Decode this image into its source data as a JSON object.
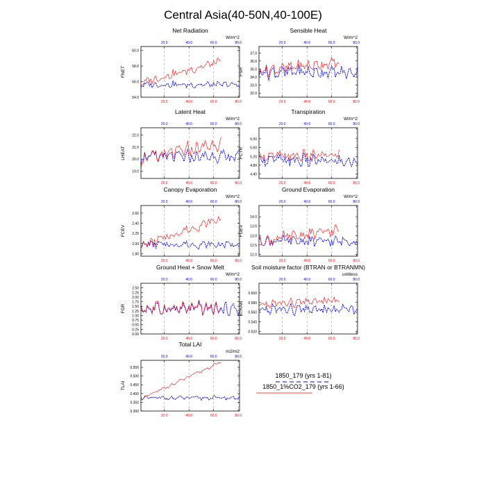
{
  "page": {
    "title": "Central Asia(40-50N,40-100E)"
  },
  "colors": {
    "control": "#0000ff",
    "experiment": "#ff0000",
    "axis": "#000000",
    "grid": "#999999"
  },
  "legend": {
    "entries": [
      {
        "label": "1850_179 (yrs 1-81)",
        "color": "#0000ff",
        "style": "dashed"
      },
      {
        "label": "1850_1%CO2_179 (yrs 1-66)",
        "color": "#ff0000",
        "style": "solid"
      }
    ]
  },
  "chart_data": [
    {
      "type": "line",
      "title": "Net Radiation",
      "ylabel": "FNET",
      "units": "W/m^2",
      "xlim": [
        1,
        81
      ],
      "xticks": [
        20,
        40,
        60,
        80
      ],
      "xtick_labels_top": [
        "20.0",
        "40.0",
        "60.0",
        "80.0"
      ],
      "xtick_labels_bottom": [
        "20.0",
        "40.0",
        "60.0",
        "80.0"
      ],
      "ylim": [
        54.0,
        60.5
      ],
      "yticks": [
        54.0,
        56.0,
        58.0,
        60.0
      ],
      "ytick_labels": [
        "54.0",
        "56.0",
        "58.0",
        "60.0"
      ],
      "series": [
        {
          "key": "control",
          "n": 81,
          "style": "dashed",
          "base": 55.6,
          "amp": 0.55,
          "trend": 0.0,
          "wiggle": 3
        },
        {
          "key": "experiment",
          "n": 66,
          "style": "solid",
          "base": 55.8,
          "amp": 0.7,
          "trend": 2.8,
          "wiggle": 3
        }
      ]
    },
    {
      "type": "line",
      "title": "Sensible Heat",
      "ylabel": "FSH",
      "units": "W/m^2",
      "xlim": [
        1,
        81
      ],
      "xticks": [
        20,
        40,
        60,
        80
      ],
      "xtick_labels_top": [
        "20.0",
        "40.0",
        "60.0",
        "80.0"
      ],
      "xtick_labels_bottom": [
        "20.0",
        "40.0",
        "60.0",
        "80.0"
      ],
      "ylim": [
        31.5,
        37.8
      ],
      "yticks": [
        32.0,
        33.0,
        34.0,
        35.0,
        36.0,
        37.0
      ],
      "ytick_labels": [
        "32.0",
        "33.0",
        "34.0",
        "35.0",
        "36.0",
        "37.0"
      ],
      "series": [
        {
          "key": "control",
          "n": 81,
          "style": "dashed",
          "base": 34.6,
          "amp": 1.1,
          "trend": 0.0,
          "wiggle": 4
        },
        {
          "key": "experiment",
          "n": 66,
          "style": "solid",
          "base": 34.8,
          "amp": 1.0,
          "trend": 1.0,
          "wiggle": 4
        }
      ]
    },
    {
      "type": "line",
      "title": "Latent Heat",
      "ylabel": "LHEAT",
      "units": "W/m^2",
      "xlim": [
        1,
        81
      ],
      "xticks": [
        20,
        40,
        60,
        80
      ],
      "xtick_labels_top": [
        "20.0",
        "40.0",
        "60.0",
        "80.0"
      ],
      "xtick_labels_bottom": [
        "20.0",
        "40.0",
        "60.0",
        "80.0"
      ],
      "ylim": [
        18.4,
        22.6
      ],
      "yticks": [
        19.0,
        20.0,
        21.0,
        22.0
      ],
      "ytick_labels": [
        "19.0",
        "20.0",
        "21.0",
        "22.0"
      ],
      "series": [
        {
          "key": "control",
          "n": 81,
          "style": "dashed",
          "base": 20.2,
          "amp": 0.7,
          "trend": 0.0,
          "wiggle": 5
        },
        {
          "key": "experiment",
          "n": 66,
          "style": "solid",
          "base": 20.0,
          "amp": 0.8,
          "trend": 1.3,
          "wiggle": 5
        }
      ]
    },
    {
      "type": "line",
      "title": "Transpiration",
      "ylabel": "FCTR",
      "units": "W/m^2",
      "xlim": [
        1,
        81
      ],
      "xticks": [
        20,
        40,
        60,
        80
      ],
      "xtick_labels_top": [
        "20.0",
        "40.0",
        "60.0",
        "80.0"
      ],
      "xtick_labels_bottom": [
        "20.0",
        "40.0",
        "60.0",
        "80.0"
      ],
      "ylim": [
        4.2,
        6.5
      ],
      "yticks": [
        4.4,
        4.8,
        5.2,
        5.6,
        6.0
      ],
      "ytick_labels": [
        "4.40",
        "4.80",
        "5.20",
        "5.60",
        "6.00"
      ],
      "series": [
        {
          "key": "control",
          "n": 81,
          "style": "dashed",
          "base": 5.05,
          "amp": 0.4,
          "trend": -0.1,
          "wiggle": 6
        },
        {
          "key": "experiment",
          "n": 66,
          "style": "solid",
          "base": 5.2,
          "amp": 0.35,
          "trend": 0.05,
          "wiggle": 6
        }
      ]
    },
    {
      "type": "line",
      "title": "Canopy Evaporation",
      "ylabel": "FCEV",
      "units": "W/m^2",
      "xlim": [
        1,
        81
      ],
      "xticks": [
        20,
        40,
        60,
        80
      ],
      "xtick_labels_top": [
        "20.0",
        "40.0",
        "60.0",
        "80.0"
      ],
      "xtick_labels_bottom": [
        "20.0",
        "40.0",
        "60.0",
        "80.0"
      ],
      "ylim": [
        1.75,
        2.75
      ],
      "yticks": [
        1.8,
        2.0,
        2.2,
        2.4,
        2.6
      ],
      "ytick_labels": [
        "1.80",
        "2.00",
        "2.20",
        "2.40",
        "2.60"
      ],
      "series": [
        {
          "key": "control",
          "n": 81,
          "style": "dashed",
          "base": 1.98,
          "amp": 0.1,
          "trend": 0.0,
          "wiggle": 7
        },
        {
          "key": "experiment",
          "n": 66,
          "style": "solid",
          "base": 1.95,
          "amp": 0.12,
          "trend": 0.55,
          "wiggle": 7
        }
      ]
    },
    {
      "type": "line",
      "title": "Ground Evaporation",
      "ylabel": "FGEV",
      "units": "W/m^2",
      "xlim": [
        1,
        81
      ],
      "xticks": [
        20,
        40,
        60,
        80
      ],
      "xtick_labels_top": [
        "20.0",
        "40.0",
        "60.0",
        "80.0"
      ],
      "xtick_labels_bottom": [
        "20.0",
        "40.0",
        "60.0",
        "80.0"
      ],
      "ylim": [
        11.9,
        14.6
      ],
      "yticks": [
        12.0,
        12.5,
        13.0,
        13.5,
        14.0
      ],
      "ytick_labels": [
        "12.0",
        "12.5",
        "13.0",
        "13.5",
        "14.0"
      ],
      "series": [
        {
          "key": "control",
          "n": 81,
          "style": "dashed",
          "base": 12.7,
          "amp": 0.35,
          "trend": 0.0,
          "wiggle": 8
        },
        {
          "key": "experiment",
          "n": 66,
          "style": "solid",
          "base": 12.7,
          "amp": 0.4,
          "trend": 0.6,
          "wiggle": 8
        }
      ]
    },
    {
      "type": "line",
      "title": "Ground Heat + Snow Melt",
      "ylabel": "FGR",
      "units": "W/m^2",
      "xlim": [
        1,
        81
      ],
      "xticks": [
        20,
        40,
        60,
        80
      ],
      "xtick_labels_top": [
        "20.0",
        "40.0",
        "60.0",
        "80.0"
      ],
      "xtick_labels_bottom": [
        "20.0",
        "40.0",
        "60.0",
        "80.0"
      ],
      "ylim": [
        0.0,
        2.75
      ],
      "yticks": [
        0.0,
        0.25,
        0.5,
        0.75,
        1.0,
        1.25,
        1.5,
        1.75,
        2.0,
        2.25,
        2.5
      ],
      "ytick_labels": [
        "0.00",
        "0.25",
        "0.50",
        "0.75",
        "1.00",
        "1.25",
        "1.50",
        "1.75",
        "2.00",
        "2.25",
        "2.50"
      ],
      "series": [
        {
          "key": "control",
          "n": 81,
          "style": "dashed",
          "base": 1.35,
          "amp": 0.45,
          "trend": 0.0,
          "wiggle": 9
        },
        {
          "key": "experiment",
          "n": 66,
          "style": "solid",
          "base": 1.4,
          "amp": 0.5,
          "trend": 0.0,
          "wiggle": 9
        }
      ]
    },
    {
      "type": "line",
      "title": "Soil moisture factor (BTRAN or BTRANMN)",
      "ylabel": "BTRAN",
      "units": "unitless",
      "xlim": [
        1,
        81
      ],
      "xticks": [
        20,
        40,
        60,
        80
      ],
      "xtick_labels_top": [
        "20.0",
        "40.0",
        "60.0",
        "80.0"
      ],
      "xtick_labels_bottom": [
        "20.0",
        "40.0",
        "60.0",
        "80.0"
      ],
      "ylim": [
        0.515,
        0.62
      ],
      "yticks": [
        0.52,
        0.54,
        0.56,
        0.58,
        0.6
      ],
      "ytick_labels": [
        "0.520",
        "0.540",
        "0.560",
        "0.580",
        "0.600"
      ],
      "series": [
        {
          "key": "control",
          "n": 81,
          "style": "dashed",
          "base": 0.565,
          "amp": 0.015,
          "trend": 0.0,
          "wiggle": 10
        },
        {
          "key": "experiment",
          "n": 66,
          "style": "solid",
          "base": 0.575,
          "amp": 0.012,
          "trend": 0.01,
          "wiggle": 10
        }
      ]
    },
    {
      "type": "line",
      "title": "Total LAI",
      "ylabel": "TLAI",
      "units": "m2/m2",
      "xlim": [
        1,
        81
      ],
      "xticks": [
        20,
        40,
        60,
        80
      ],
      "xtick_labels_top": [
        "20.0",
        "40.0",
        "60.0",
        "80.0"
      ],
      "xtick_labels_bottom": [
        "20.0",
        "40.0",
        "60.0",
        "80.0"
      ],
      "ylim": [
        0.3,
        0.59
      ],
      "yticks": [
        0.3,
        0.35,
        0.4,
        0.45,
        0.5,
        0.55
      ],
      "ytick_labels": [
        "0.300",
        "0.350",
        "0.400",
        "0.450",
        "0.500",
        "0.550"
      ],
      "series": [
        {
          "key": "control",
          "n": 81,
          "style": "dashed",
          "base": 0.375,
          "amp": 0.015,
          "trend": 0.0,
          "wiggle": 11
        },
        {
          "key": "experiment",
          "n": 66,
          "style": "solid",
          "base": 0.37,
          "amp": 0.012,
          "trend": 0.21,
          "wiggle": 11
        }
      ]
    }
  ]
}
